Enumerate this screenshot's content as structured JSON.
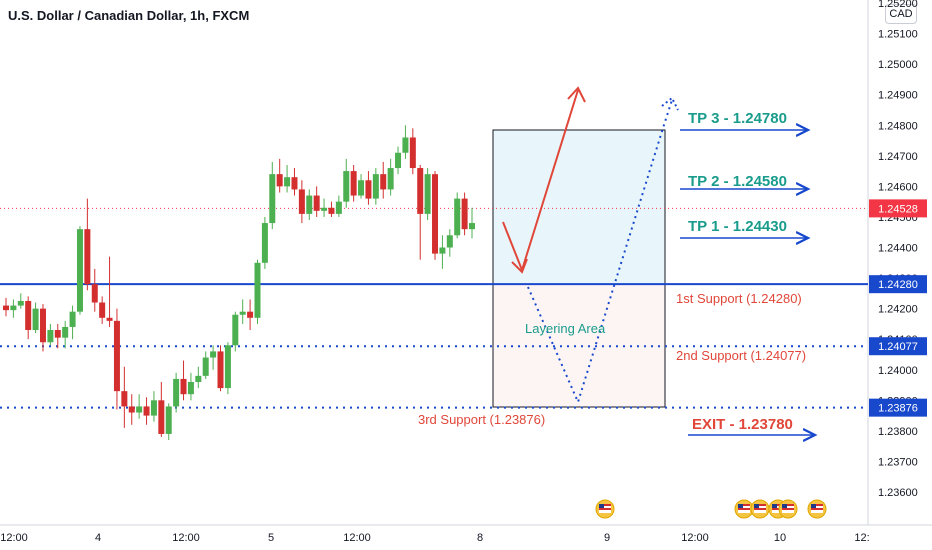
{
  "header": {
    "title": "U.S. Dollar / Canadian Dollar, 1h, FXCM",
    "currency": "CAD"
  },
  "chart_data": {
    "type": "candlestick",
    "y_ticks": [
      "1.25200",
      "1.25100",
      "1.25000",
      "1.24900",
      "1.24800",
      "1.24700",
      "1.24600",
      "1.24500",
      "1.24400",
      "1.24300",
      "1.24200",
      "1.24100",
      "1.24000",
      "1.23900",
      "1.23800",
      "1.23700",
      "1.23600"
    ],
    "x_ticks": [
      "12:00",
      "4",
      "12:00",
      "5",
      "12:00",
      "8",
      "9",
      "12:00",
      "10",
      "12:"
    ],
    "ylim": [
      1.2354,
      1.2522
    ],
    "price_tags": [
      {
        "text": "1.24528",
        "value": 1.24528,
        "color": "#f23645"
      },
      {
        "text": "1.24280",
        "value": 1.2428,
        "color": "#1848cc"
      },
      {
        "text": "1.24077",
        "value": 1.24077,
        "color": "#1848cc"
      },
      {
        "text": "1.23876",
        "value": 1.23876,
        "color": "#1848cc"
      }
    ],
    "levels": [
      {
        "value": 1.2428,
        "style": "solid",
        "color": "#1848cc"
      },
      {
        "value": 1.24077,
        "style": "dotted",
        "color": "#1848cc"
      },
      {
        "value": 1.23876,
        "style": "dotted",
        "color": "#1848cc"
      },
      {
        "value": 1.24528,
        "style": "dotted",
        "color": "#f23645"
      }
    ],
    "annotations": {
      "tp3": "TP 3 - 1.24780",
      "tp2": "TP 2 - 1.24580",
      "tp1": "TP 1 - 1.24430",
      "support1": "1st Support (1.24280)",
      "support2": "2nd Support (1.24077)",
      "support3": "3rd Support (1.23876)",
      "layering": "Layering Area",
      "exit": "EXIT - 1.23780"
    },
    "candles": [
      [
        1.2421,
        1.24235,
        1.24175,
        1.24195
      ],
      [
        1.24195,
        1.2423,
        1.2417,
        1.2421
      ],
      [
        1.2421,
        1.2425,
        1.242,
        1.24225
      ],
      [
        1.24225,
        1.2424,
        1.241,
        1.2413
      ],
      [
        1.2413,
        1.2422,
        1.2412,
        1.242
      ],
      [
        1.242,
        1.24215,
        1.2406,
        1.2409
      ],
      [
        1.2409,
        1.2415,
        1.2408,
        1.2413
      ],
      [
        1.2413,
        1.2415,
        1.2407,
        1.24105
      ],
      [
        1.24105,
        1.2416,
        1.2407,
        1.2414
      ],
      [
        1.2414,
        1.2421,
        1.241,
        1.2419
      ],
      [
        1.2419,
        1.2447,
        1.2418,
        1.2446
      ],
      [
        1.2446,
        1.2456,
        1.2426,
        1.2428
      ],
      [
        1.2428,
        1.2433,
        1.2419,
        1.2422
      ],
      [
        1.2422,
        1.2424,
        1.2415,
        1.2417
      ],
      [
        1.2417,
        1.2437,
        1.2414,
        1.2416
      ],
      [
        1.2416,
        1.242,
        1.2387,
        1.2393
      ],
      [
        1.2393,
        1.2401,
        1.2381,
        1.2388
      ],
      [
        1.2388,
        1.2392,
        1.2382,
        1.2386
      ],
      [
        1.2386,
        1.2392,
        1.2384,
        1.2388
      ],
      [
        1.2388,
        1.2391,
        1.2382,
        1.2385
      ],
      [
        1.2385,
        1.2393,
        1.2383,
        1.239
      ],
      [
        1.239,
        1.2396,
        1.2378,
        1.2379
      ],
      [
        1.2379,
        1.2389,
        1.2377,
        1.2388
      ],
      [
        1.2388,
        1.2399,
        1.2386,
        1.2397
      ],
      [
        1.2397,
        1.2403,
        1.239,
        1.2392
      ],
      [
        1.2392,
        1.2399,
        1.239,
        1.2396
      ],
      [
        1.2396,
        1.2401,
        1.2394,
        1.2398
      ],
      [
        1.2398,
        1.2406,
        1.2397,
        1.2404
      ],
      [
        1.2404,
        1.2408,
        1.24,
        1.2406
      ],
      [
        1.2406,
        1.2408,
        1.2393,
        1.2394
      ],
      [
        1.2394,
        1.2409,
        1.2392,
        1.2408
      ],
      [
        1.2408,
        1.2419,
        1.2406,
        1.2418
      ],
      [
        1.2418,
        1.2423,
        1.2415,
        1.2419
      ],
      [
        1.2419,
        1.2423,
        1.2413,
        1.2417
      ],
      [
        1.2417,
        1.2436,
        1.2415,
        1.2435
      ],
      [
        1.2435,
        1.245,
        1.2433,
        1.2448
      ],
      [
        1.2448,
        1.2468,
        1.2446,
        1.2464
      ],
      [
        1.2464,
        1.2469,
        1.2458,
        1.246
      ],
      [
        1.246,
        1.2467,
        1.2458,
        1.2463
      ],
      [
        1.2463,
        1.2466,
        1.2457,
        1.2459
      ],
      [
        1.2459,
        1.2462,
        1.2448,
        1.2451
      ],
      [
        1.2451,
        1.2459,
        1.2449,
        1.2457
      ],
      [
        1.2457,
        1.246,
        1.245,
        1.2452
      ],
      [
        1.2452,
        1.2456,
        1.245,
        1.2453
      ],
      [
        1.2453,
        1.2455,
        1.245,
        1.2451
      ],
      [
        1.2451,
        1.2457,
        1.245,
        1.2455
      ],
      [
        1.2455,
        1.2469,
        1.2453,
        1.2465
      ],
      [
        1.2465,
        1.2467,
        1.2455,
        1.2457
      ],
      [
        1.2457,
        1.2464,
        1.2456,
        1.2462
      ],
      [
        1.2462,
        1.2465,
        1.2454,
        1.2456
      ],
      [
        1.2456,
        1.2466,
        1.2454,
        1.2464
      ],
      [
        1.2464,
        1.2468,
        1.2456,
        1.2459
      ],
      [
        1.2459,
        1.2469,
        1.2457,
        1.2466
      ],
      [
        1.2466,
        1.2473,
        1.2464,
        1.2471
      ],
      [
        1.2471,
        1.248,
        1.2469,
        1.2476
      ],
      [
        1.2476,
        1.2479,
        1.2464,
        1.2466
      ],
      [
        1.2466,
        1.2467,
        1.2436,
        1.2451
      ],
      [
        1.2451,
        1.2466,
        1.2449,
        1.2464
      ],
      [
        1.2464,
        1.2465,
        1.2436,
        1.2438
      ],
      [
        1.2438,
        1.2444,
        1.2433,
        1.244
      ],
      [
        1.244,
        1.2446,
        1.2437,
        1.2444
      ],
      [
        1.2444,
        1.2458,
        1.2443,
        1.2456
      ],
      [
        1.2456,
        1.2458,
        1.2444,
        1.2446
      ],
      [
        1.2446,
        1.2453,
        1.2443,
        1.2448
      ]
    ]
  }
}
